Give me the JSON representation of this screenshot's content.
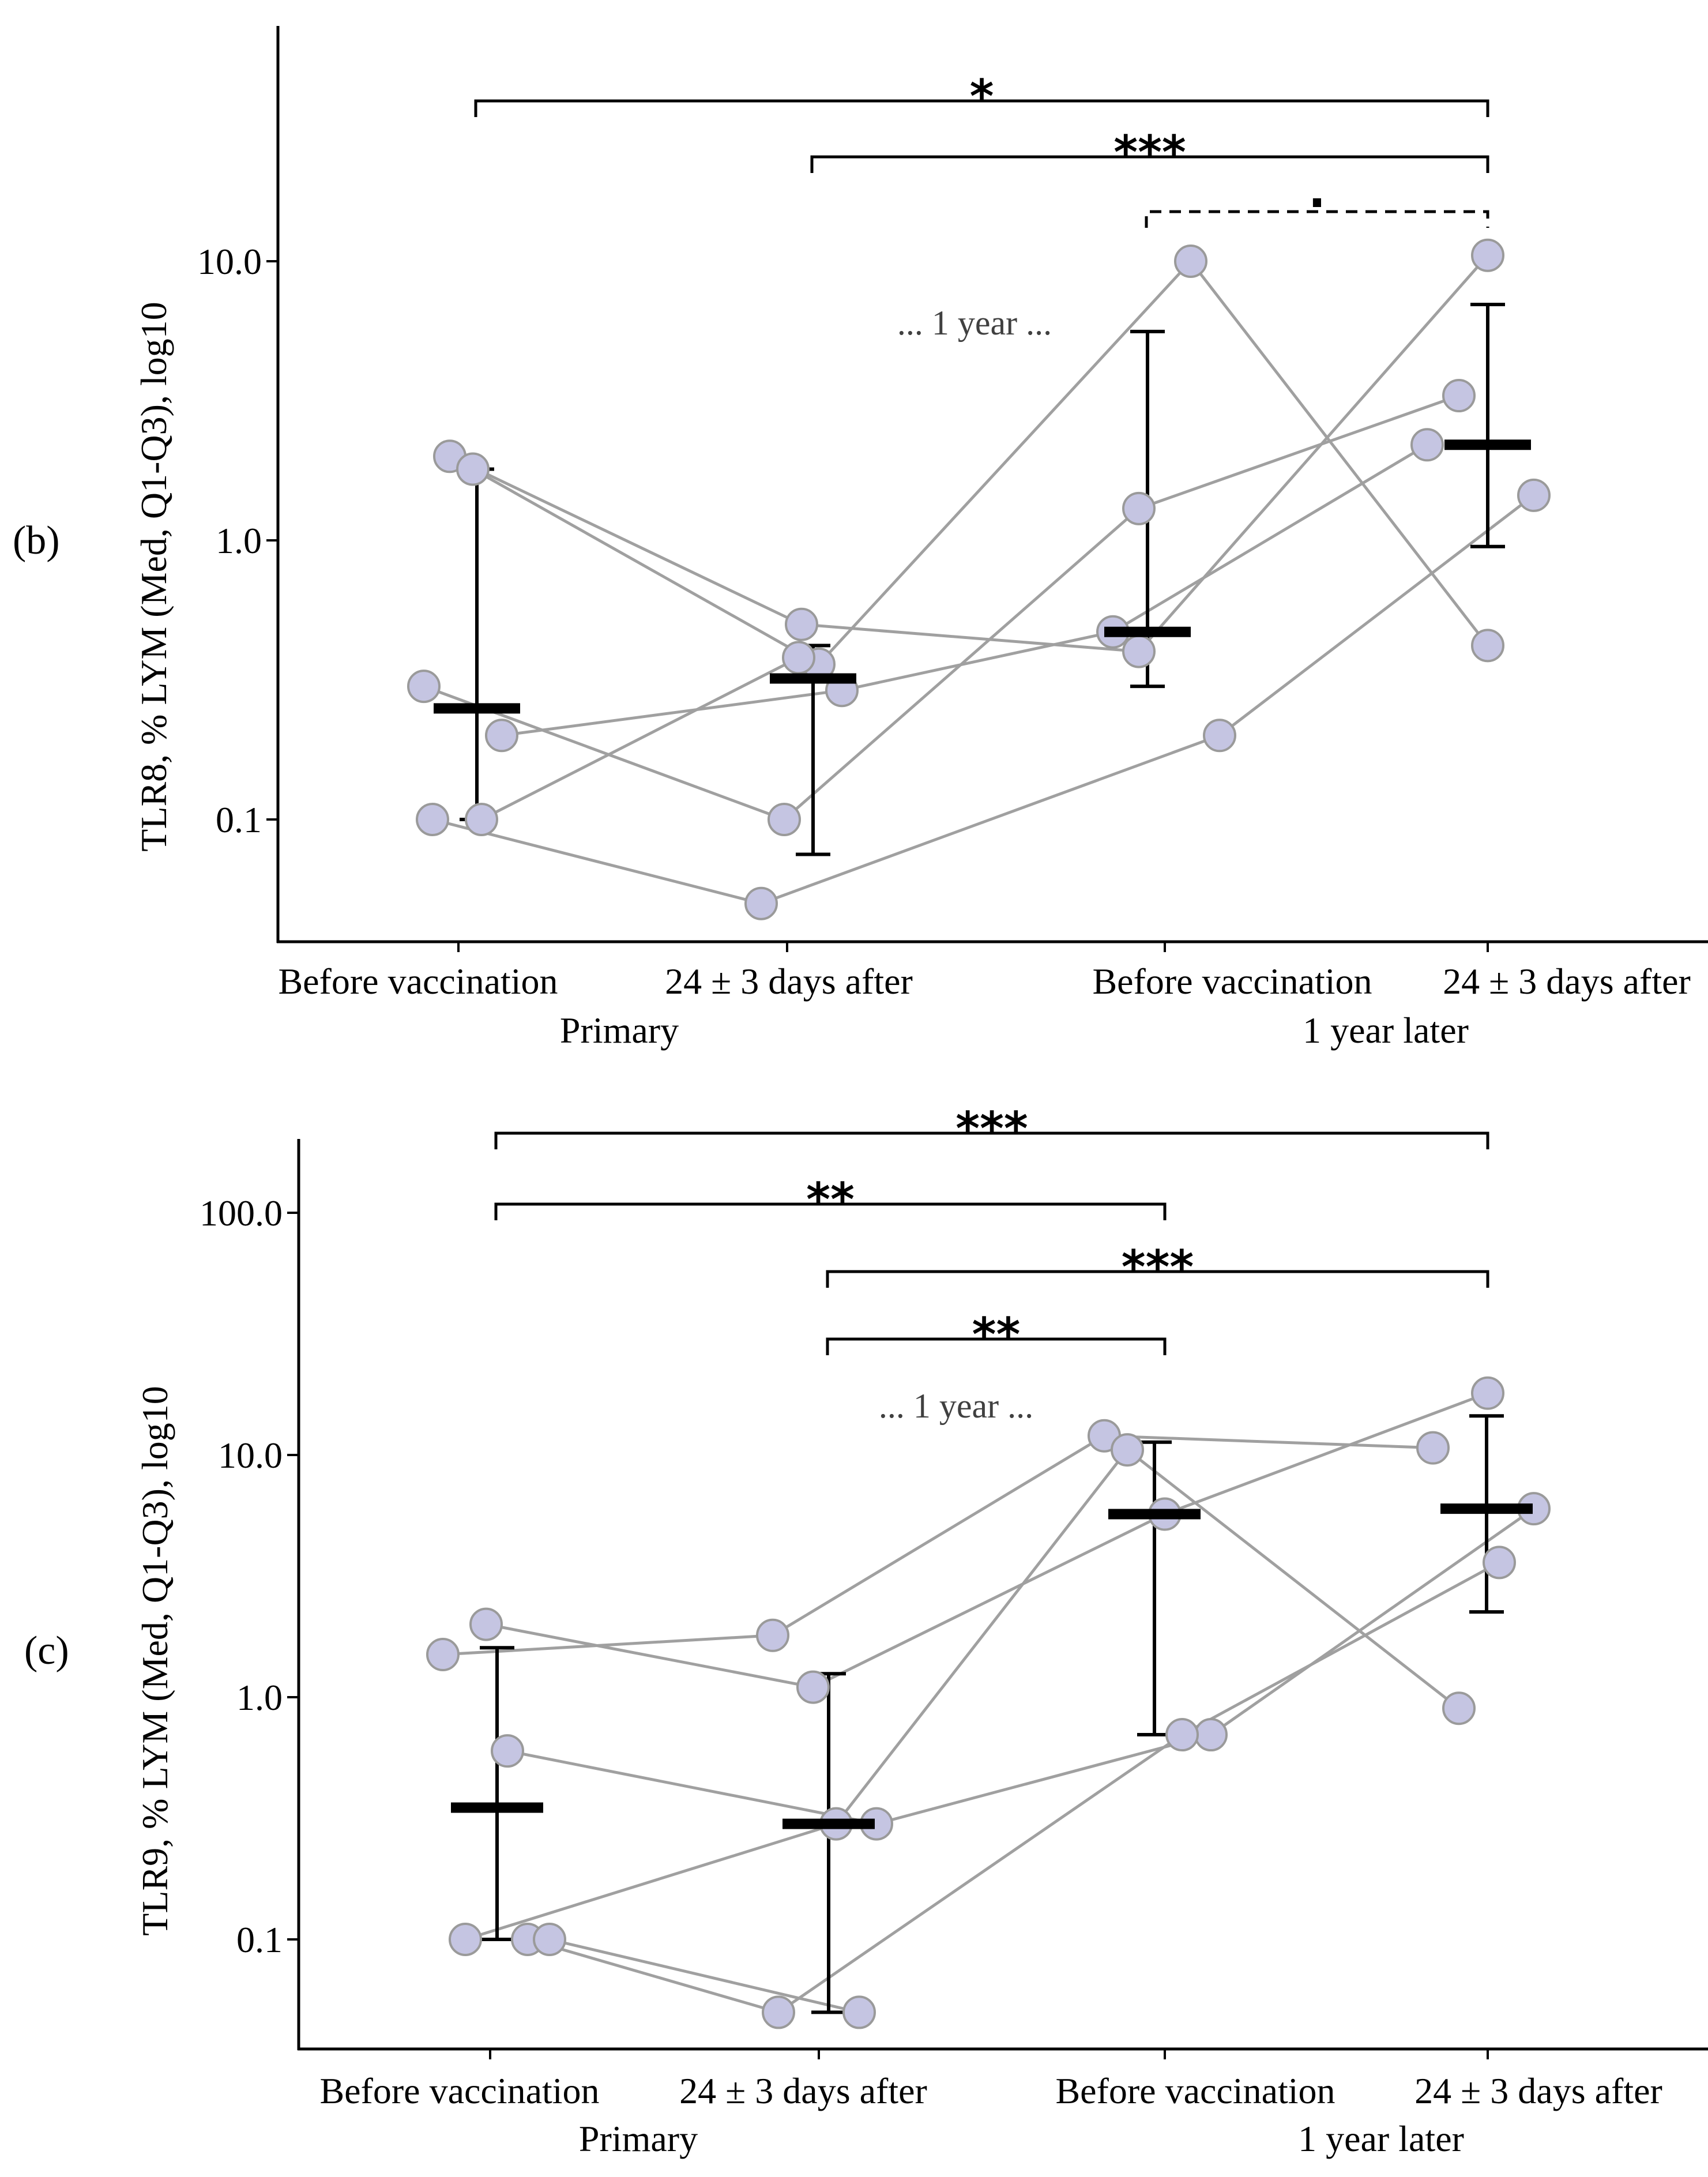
{
  "chart_data": [
    {
      "type": "scatter",
      "panel_label": "(b)",
      "ylabel": "TLR8, % LYM (Med, Q1-Q3), log10",
      "y_scale": "log10",
      "ylim": [
        0.04,
        60
      ],
      "yticks": [
        0.1,
        1.0,
        10.0
      ],
      "ytick_labels": [
        "0.1",
        "1.0",
        "10.0"
      ],
      "categories": [
        "Before vaccination",
        "24 ± 3 days after",
        "Before vaccination",
        "24 ± 3 days after"
      ],
      "group_labels": [
        "Primary",
        "1 year later"
      ],
      "annotation": "... 1 year ...",
      "summary": [
        {
          "median": 0.25,
          "q1": 0.1,
          "q3": 1.8
        },
        {
          "median": 0.32,
          "q1": 0.075,
          "q3": 0.42
        },
        {
          "median": 0.47,
          "q1": 0.3,
          "q3": 5.6
        },
        {
          "median": 2.2,
          "q1": 0.95,
          "q3": 7.0
        }
      ],
      "subjects": [
        {
          "values": [
            2.0,
            0.5,
            0.4,
            10.5
          ]
        },
        {
          "values": [
            1.8,
            0.36,
            10.0,
            0.42
          ]
        },
        {
          "values": [
            0.3,
            0.1,
            1.3,
            3.3
          ]
        },
        {
          "values": [
            0.2,
            0.29,
            0.47,
            2.2
          ]
        },
        {
          "values": [
            0.1,
            0.05,
            0.2,
            1.45
          ]
        },
        {
          "values": [
            0.1,
            0.38,
            null,
            null
          ]
        }
      ],
      "significance": [
        {
          "from": 0,
          "to": 3,
          "label": "*",
          "dashed": false
        },
        {
          "from": 1,
          "to": 3,
          "label": "***",
          "dashed": false
        },
        {
          "from": 2,
          "to": 3,
          "label": ".",
          "dashed": true
        }
      ]
    },
    {
      "type": "scatter",
      "panel_label": "(c)",
      "ylabel": "TLR9, % LYM (Med, Q1-Q3), log10",
      "y_scale": "log10",
      "ylim": [
        0.045,
        200
      ],
      "yticks": [
        0.1,
        1.0,
        10.0,
        100.0
      ],
      "ytick_labels": [
        "0.1",
        "1.0",
        "10.0",
        "100.0"
      ],
      "categories": [
        "Before vaccination",
        "24 ± 3 days after",
        "Before vaccination",
        "24 ± 3 days after"
      ],
      "group_labels": [
        "Primary",
        "1 year later"
      ],
      "annotation": "... 1 year ...",
      "summary": [
        {
          "median": 0.35,
          "q1": 0.1,
          "q3": 1.6
        },
        {
          "median": 0.3,
          "q1": 0.05,
          "q3": 1.25
        },
        {
          "median": 5.7,
          "q1": 0.7,
          "q3": 11.3
        },
        {
          "median": 6.0,
          "q1": 2.25,
          "q3": 14.5
        }
      ],
      "subjects": [
        {
          "values": [
            1.5,
            1.8,
            12.0,
            10.7
          ]
        },
        {
          "values": [
            2.0,
            1.1,
            5.7,
            18.0
          ]
        },
        {
          "values": [
            0.6,
            0.3,
            0.7,
            6.0
          ]
        },
        {
          "values": [
            0.1,
            0.3,
            10.5,
            0.9
          ]
        },
        {
          "values": [
            0.1,
            0.05,
            0.7,
            3.6
          ]
        },
        {
          "values": [
            0.1,
            0.05,
            null,
            null
          ]
        }
      ],
      "significance": [
        {
          "from": 0,
          "to": 3,
          "label": "***",
          "dashed": false
        },
        {
          "from": 0,
          "to": 2,
          "label": "**",
          "dashed": false
        },
        {
          "from": 1,
          "to": 3,
          "label": "***",
          "dashed": false
        },
        {
          "from": 1,
          "to": 2,
          "label": "**",
          "dashed": false
        }
      ]
    }
  ]
}
